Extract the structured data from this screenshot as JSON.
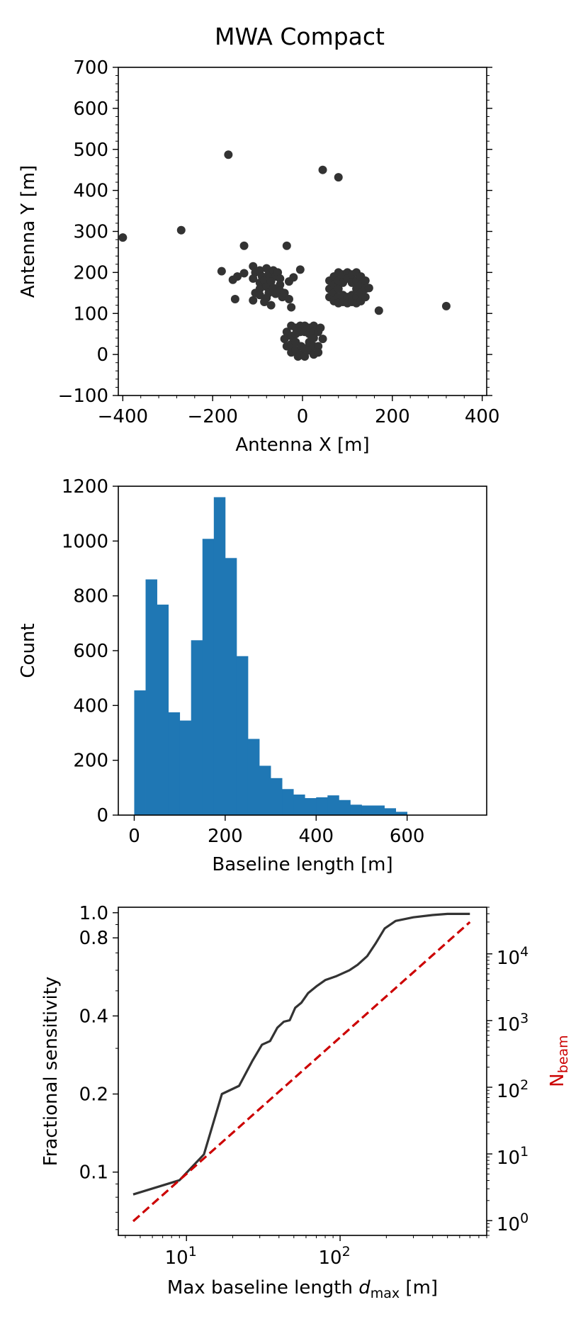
{
  "title": "MWA Compact",
  "chart_data": [
    {
      "type": "scatter",
      "title": "MWA Compact",
      "xlabel": "Antenna X [m]",
      "ylabel": "Antenna Y [m]",
      "xlim": [
        -410,
        410
      ],
      "ylim": [
        -100,
        700
      ],
      "xticks": [
        -400,
        -200,
        0,
        200,
        400
      ],
      "xtick_labels": [
        "−400",
        "−200",
        "0",
        "200",
        "400"
      ],
      "yticks": [
        -100,
        0,
        100,
        200,
        300,
        400,
        500,
        600,
        700
      ],
      "ytick_labels": [
        "−100",
        "0",
        "100",
        "200",
        "300",
        "400",
        "500",
        "600",
        "700"
      ],
      "marker_color": "#333333",
      "points": [
        [
          -400,
          285
        ],
        [
          -270,
          303
        ],
        [
          -165,
          487
        ],
        [
          45,
          450
        ],
        [
          80,
          432
        ],
        [
          -130,
          265
        ],
        [
          -35,
          265
        ],
        [
          170,
          107
        ],
        [
          320,
          118
        ],
        [
          -180,
          203
        ],
        [
          -155,
          182
        ],
        [
          -145,
          190
        ],
        [
          -130,
          198
        ],
        [
          -150,
          135
        ],
        [
          -110,
          215
        ],
        [
          -105,
          200
        ],
        [
          -110,
          185
        ],
        [
          -105,
          150
        ],
        [
          -110,
          132
        ],
        [
          -95,
          205
        ],
        [
          -90,
          190
        ],
        [
          -95,
          175
        ],
        [
          -95,
          160
        ],
        [
          -95,
          145
        ],
        [
          -80,
          210
        ],
        [
          -75,
          195
        ],
        [
          -85,
          180
        ],
        [
          -80,
          165
        ],
        [
          -75,
          150
        ],
        [
          -80,
          138
        ],
        [
          -65,
          205
        ],
        [
          -60,
          190
        ],
        [
          -70,
          178
        ],
        [
          -65,
          162
        ],
        [
          -60,
          148
        ],
        [
          -55,
          200
        ],
        [
          -50,
          185
        ],
        [
          -50,
          170
        ],
        [
          -50,
          155
        ],
        [
          -45,
          140
        ],
        [
          -70,
          120
        ],
        [
          -85,
          128
        ],
        [
          -40,
          150
        ],
        [
          -30,
          178
        ],
        [
          -20,
          188
        ],
        [
          -5,
          207
        ],
        [
          -30,
          135
        ],
        [
          -25,
          115
        ],
        [
          60,
          180
        ],
        [
          60,
          160
        ],
        [
          60,
          140
        ],
        [
          70,
          190
        ],
        [
          70,
          170
        ],
        [
          70,
          150
        ],
        [
          70,
          130
        ],
        [
          80,
          200
        ],
        [
          80,
          180
        ],
        [
          80,
          160
        ],
        [
          80,
          140
        ],
        [
          80,
          125
        ],
        [
          90,
          195
        ],
        [
          90,
          175
        ],
        [
          90,
          145
        ],
        [
          90,
          128
        ],
        [
          100,
          200
        ],
        [
          100,
          185
        ],
        [
          100,
          140
        ],
        [
          100,
          125
        ],
        [
          110,
          195
        ],
        [
          110,
          175
        ],
        [
          110,
          145
        ],
        [
          110,
          128
        ],
        [
          120,
          200
        ],
        [
          120,
          180
        ],
        [
          120,
          160
        ],
        [
          120,
          140
        ],
        [
          120,
          125
        ],
        [
          130,
          190
        ],
        [
          130,
          170
        ],
        [
          130,
          150
        ],
        [
          130,
          130
        ],
        [
          140,
          180
        ],
        [
          140,
          160
        ],
        [
          140,
          140
        ],
        [
          148,
          162
        ],
        [
          -40,
          38
        ],
        [
          -35,
          55
        ],
        [
          -35,
          20
        ],
        [
          -25,
          70
        ],
        [
          -25,
          45
        ],
        [
          -25,
          25
        ],
        [
          -25,
          5
        ],
        [
          -15,
          65
        ],
        [
          -15,
          50
        ],
        [
          -15,
          30
        ],
        [
          -15,
          10
        ],
        [
          -10,
          -5
        ],
        [
          -5,
          70
        ],
        [
          -5,
          55
        ],
        [
          -3,
          20
        ],
        [
          -5,
          0
        ],
        [
          5,
          70
        ],
        [
          5,
          55
        ],
        [
          5,
          15
        ],
        [
          5,
          -5
        ],
        [
          15,
          65
        ],
        [
          15,
          50
        ],
        [
          15,
          30
        ],
        [
          15,
          10
        ],
        [
          25,
          70
        ],
        [
          25,
          55
        ],
        [
          25,
          40
        ],
        [
          25,
          20
        ],
        [
          25,
          0
        ],
        [
          35,
          55
        ],
        [
          35,
          20
        ],
        [
          45,
          38
        ],
        [
          40,
          65
        ],
        [
          35,
          5
        ]
      ]
    },
    {
      "type": "bar",
      "xlabel": "Baseline length [m]",
      "ylabel": "Count",
      "bin_width": 25,
      "bin_start": 0,
      "values": [
        455,
        860,
        768,
        375,
        345,
        638,
        1008,
        1160,
        938,
        580,
        278,
        180,
        135,
        95,
        75,
        62,
        65,
        72,
        55,
        38,
        35,
        35,
        25,
        12
      ],
      "xlim": [
        -35,
        775
      ],
      "ylim": [
        0,
        1200
      ],
      "xticks": [
        0,
        200,
        400,
        600
      ],
      "yticks": [
        0,
        200,
        400,
        600,
        800,
        1000,
        1200
      ],
      "bar_color": "#1f77b4"
    },
    {
      "type": "line",
      "xlabel_prefix": "Max baseline length ",
      "xlabel_var": "d",
      "xlabel_sub": "max",
      "xlabel_suffix": " [m]",
      "ylabel": "Fractional sensitivity",
      "y2label": "N",
      "y2label_sub": "beam",
      "xscale": "log",
      "yscale": "log",
      "y2scale": "log",
      "xlim": [
        3.6,
        900
      ],
      "ylim": [
        0.057,
        1.05
      ],
      "y2lim": [
        0.6,
        50000
      ],
      "xticks": [
        10,
        100
      ],
      "xtick_base": "10",
      "xtick_exponents": [
        "1",
        "2"
      ],
      "yticks": [
        0.1,
        0.2,
        0.4,
        0.8,
        1.0
      ],
      "ytick_labels": [
        "0.1",
        "0.2",
        "0.4",
        "0.8",
        "1.0"
      ],
      "y2ticks": [
        1,
        10,
        100,
        1000,
        10000
      ],
      "y2tick_base": "10",
      "y2tick_exponents": [
        "0",
        "1",
        "2",
        "3",
        "4"
      ],
      "y2_color": "#cc0000",
      "series": [
        {
          "axis": "left",
          "color": "#333333",
          "style": "solid",
          "x": [
            4.5,
            9,
            13,
            17,
            22,
            27,
            31,
            35,
            39,
            43,
            47,
            51,
            56,
            62,
            70,
            80,
            95,
            115,
            130,
            150,
            170,
            195,
            230,
            300,
            400,
            500,
            700
          ],
          "y": [
            0.082,
            0.093,
            0.117,
            0.2,
            0.215,
            0.27,
            0.31,
            0.32,
            0.36,
            0.38,
            0.385,
            0.43,
            0.45,
            0.49,
            0.52,
            0.55,
            0.57,
            0.6,
            0.63,
            0.68,
            0.76,
            0.87,
            0.93,
            0.96,
            0.98,
            0.99,
            0.99
          ]
        },
        {
          "axis": "right",
          "color": "#cc0000",
          "style": "dashed",
          "x": [
            4.5,
            700
          ],
          "y": [
            0.98,
            30000
          ]
        }
      ]
    }
  ]
}
